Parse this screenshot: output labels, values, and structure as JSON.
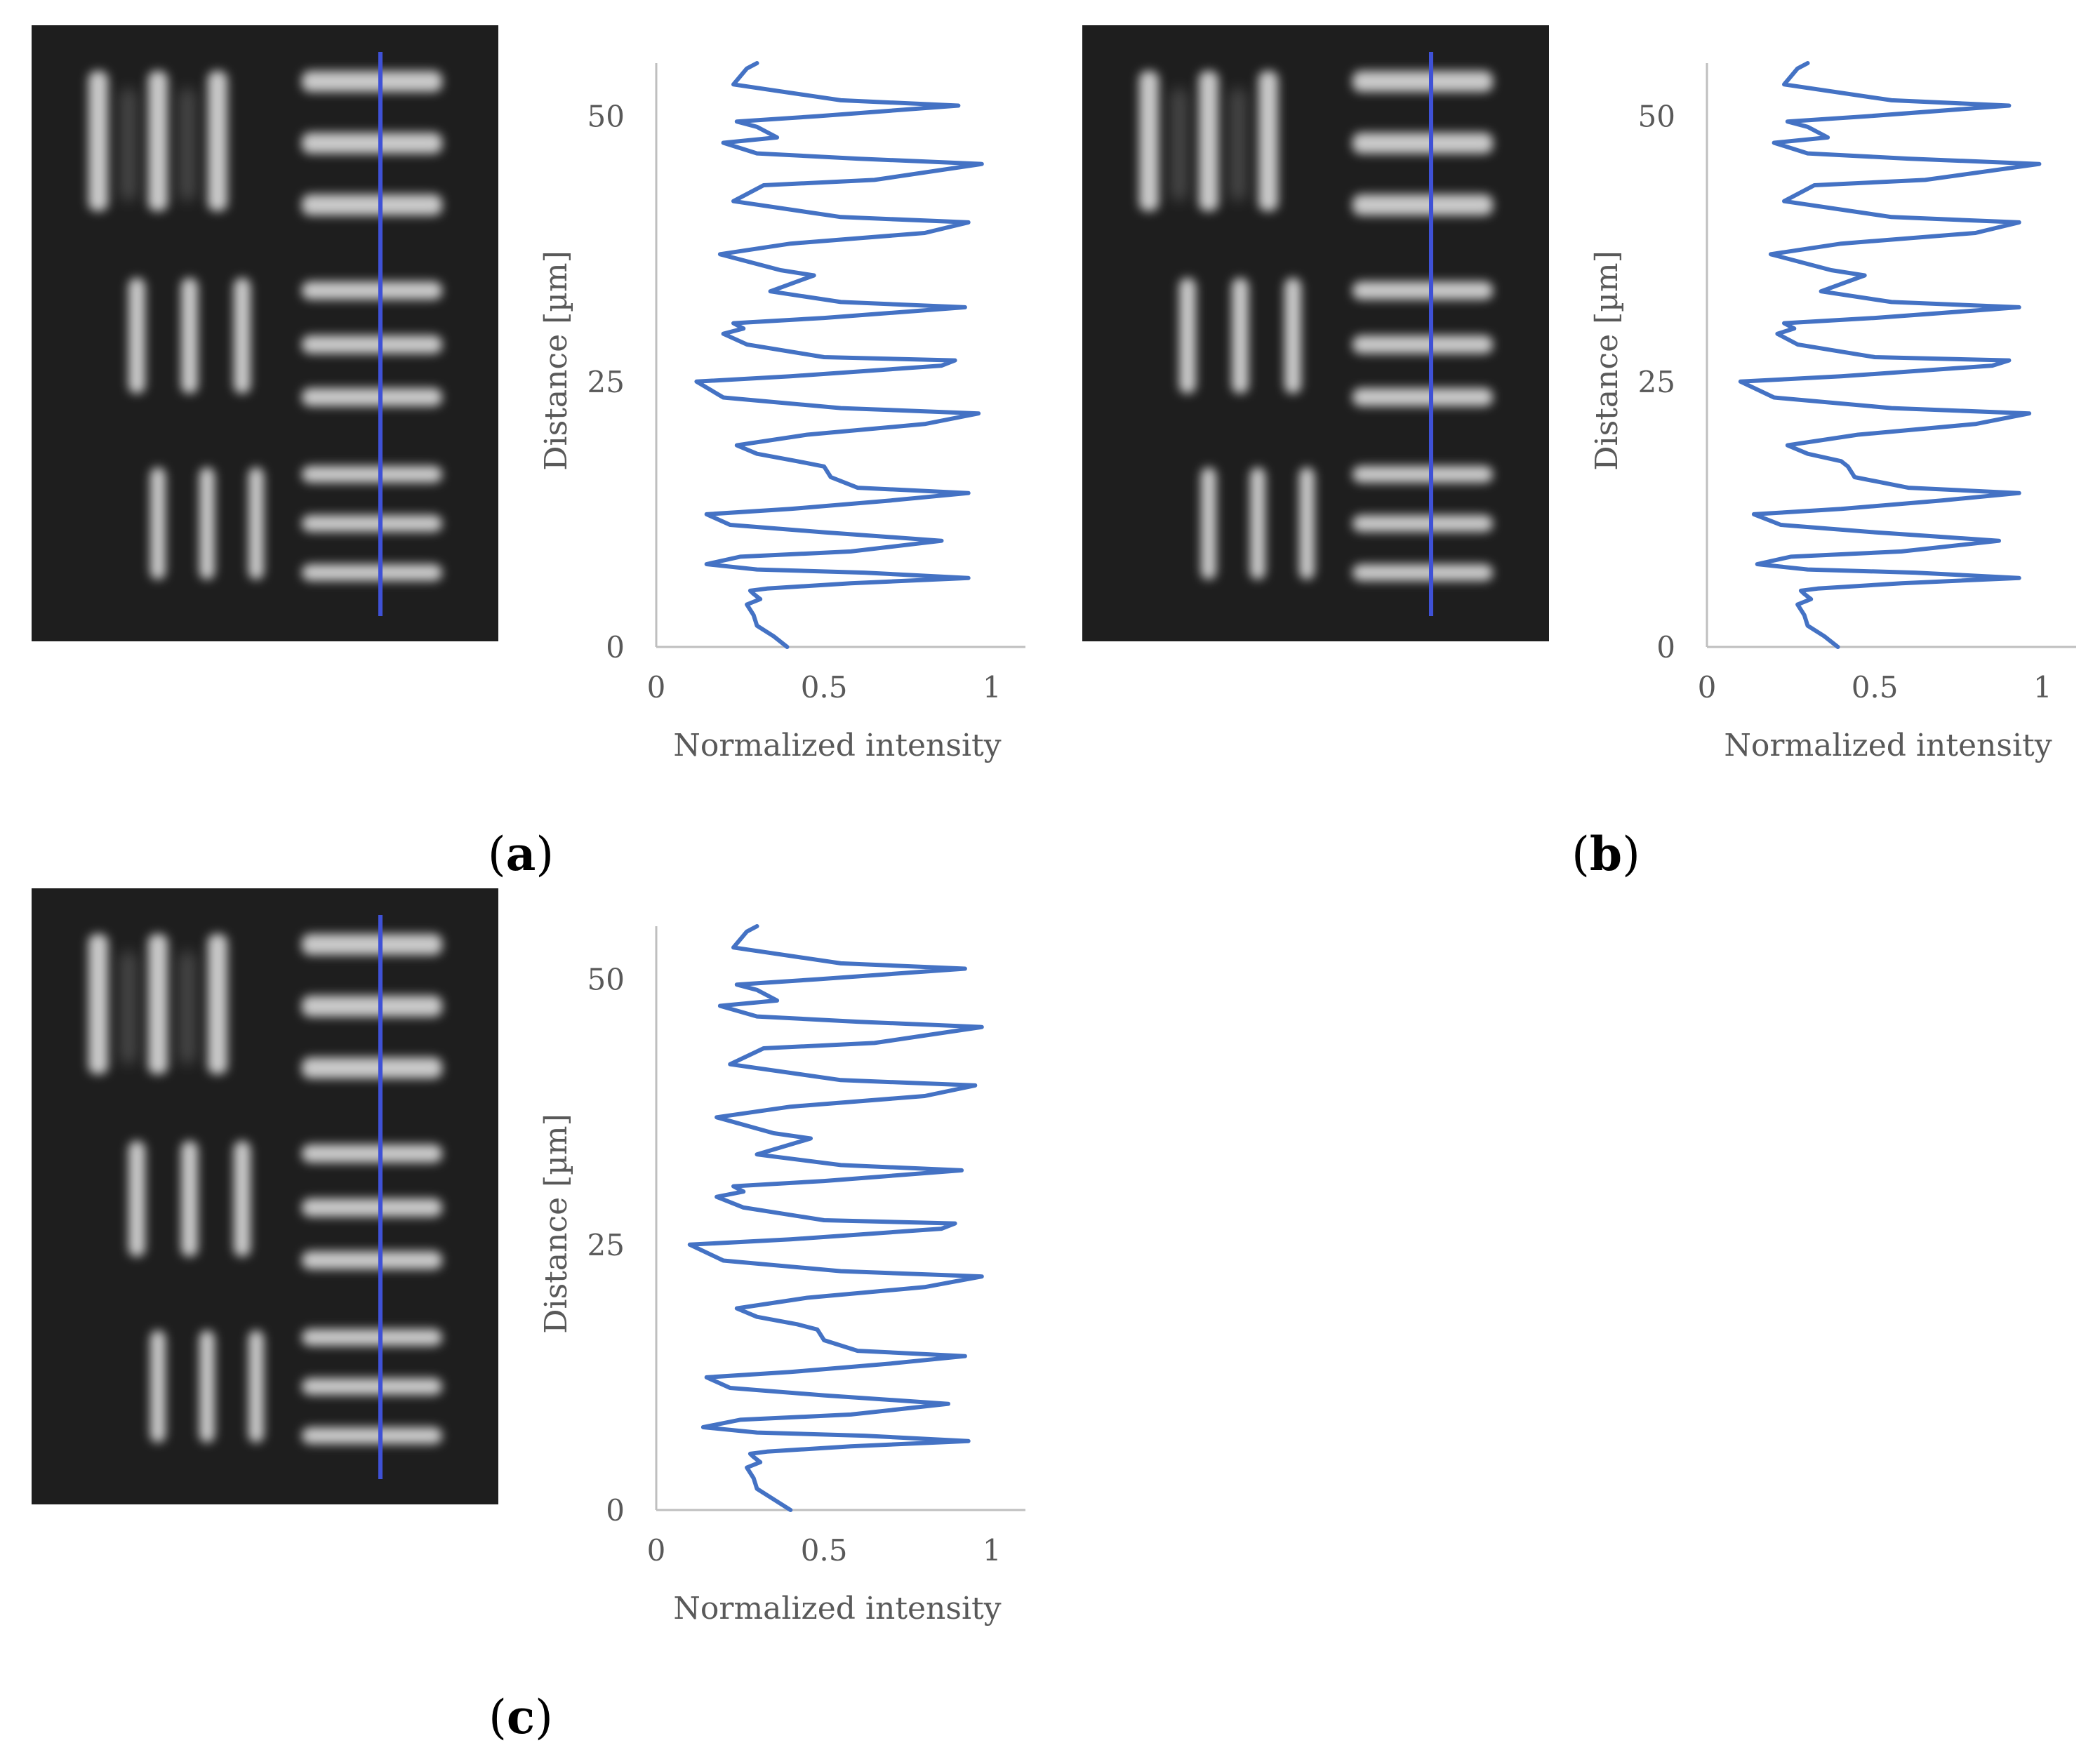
{
  "colors": {
    "profile": "#4472c4",
    "scan_line": "#3f51d6",
    "axis": "#bfbfbf",
    "text": "#595959",
    "image_bg": "#1e1e1e",
    "bar": "#c9c9c9"
  },
  "panels": [
    {
      "label": "a",
      "open": "(",
      "close": ")"
    },
    {
      "label": "b",
      "open": "(",
      "close": ")"
    },
    {
      "label": "c",
      "open": "(",
      "close": ")"
    }
  ],
  "chart_data": [
    {
      "type": "line",
      "panel": "a",
      "title": "",
      "xlabel": "Normalized intensity",
      "ylabel": "Distance [µm]",
      "xlim": [
        0,
        1.1
      ],
      "ylim": [
        0,
        55
      ],
      "xticks": [
        {
          "value": 0,
          "label": "0"
        },
        {
          "value": 0.5,
          "label": "0.5"
        },
        {
          "value": 1,
          "label": "1"
        }
      ],
      "yticks": [
        {
          "value": 0,
          "label": "0"
        },
        {
          "value": 25,
          "label": "25"
        },
        {
          "value": 50,
          "label": "50"
        }
      ],
      "grid": false,
      "series": [
        {
          "x": [
            0.39,
            0.35,
            0.3,
            0.29,
            0.27,
            0.31,
            0.29,
            0.28,
            0.33,
            0.58,
            0.93,
            0.62,
            0.3,
            0.15,
            0.25,
            0.58,
            0.85,
            0.5,
            0.22,
            0.15,
            0.4,
            0.7,
            0.93,
            0.6,
            0.52,
            0.5,
            0.42,
            0.3,
            0.24,
            0.45,
            0.8,
            0.96,
            0.55,
            0.2,
            0.12,
            0.4,
            0.85,
            0.89,
            0.5,
            0.27,
            0.2,
            0.26,
            0.23,
            0.5,
            0.92,
            0.55,
            0.34,
            0.47,
            0.37,
            0.19,
            0.4,
            0.8,
            0.93,
            0.55,
            0.23,
            0.32,
            0.65,
            0.97,
            0.6,
            0.3,
            0.2,
            0.36,
            0.3,
            0.24,
            0.48,
            0.9,
            0.55,
            0.23,
            0.27,
            0.3
          ],
          "y": [
            0,
            1,
            2,
            3,
            4,
            4.5,
            5,
            5.3,
            5.5,
            6,
            6.5,
            7,
            7.3,
            7.8,
            8.5,
            9,
            10,
            10.8,
            11.5,
            12.5,
            13,
            13.8,
            14.5,
            15,
            16,
            17,
            17.5,
            18.2,
            19,
            20,
            21,
            22,
            22.5,
            23.5,
            25,
            25.5,
            26.5,
            27,
            27.3,
            28.5,
            29.5,
            30,
            30.5,
            31,
            32,
            32.5,
            33.5,
            35,
            35.5,
            37,
            38,
            39,
            40,
            40.5,
            42,
            43.5,
            44,
            45.5,
            46,
            46.5,
            47.5,
            48,
            49,
            49.5,
            50,
            51,
            51.5,
            53,
            54.5,
            55
          ]
        }
      ]
    },
    {
      "type": "line",
      "panel": "b",
      "title": "",
      "xlabel": "Normalized intensity",
      "ylabel": "Distance [µm]",
      "xlim": [
        0,
        1.1
      ],
      "ylim": [
        0,
        55
      ],
      "xticks": [
        {
          "value": 0,
          "label": "0"
        },
        {
          "value": 0.5,
          "label": "0.5"
        },
        {
          "value": 1,
          "label": "1"
        }
      ],
      "yticks": [
        {
          "value": 0,
          "label": "0"
        },
        {
          "value": 25,
          "label": "25"
        },
        {
          "value": 50,
          "label": "50"
        }
      ],
      "grid": false,
      "series": [
        {
          "x": [
            0.39,
            0.35,
            0.3,
            0.29,
            0.27,
            0.31,
            0.29,
            0.28,
            0.33,
            0.58,
            0.93,
            0.62,
            0.3,
            0.15,
            0.25,
            0.58,
            0.87,
            0.5,
            0.22,
            0.14,
            0.4,
            0.7,
            0.93,
            0.6,
            0.44,
            0.42,
            0.4,
            0.3,
            0.24,
            0.45,
            0.8,
            0.96,
            0.55,
            0.2,
            0.1,
            0.4,
            0.85,
            0.9,
            0.5,
            0.27,
            0.21,
            0.26,
            0.23,
            0.5,
            0.93,
            0.55,
            0.34,
            0.47,
            0.37,
            0.19,
            0.4,
            0.8,
            0.93,
            0.55,
            0.23,
            0.32,
            0.65,
            0.99,
            0.6,
            0.3,
            0.2,
            0.36,
            0.3,
            0.24,
            0.48,
            0.9,
            0.55,
            0.23,
            0.27,
            0.3
          ],
          "y": [
            0,
            1,
            2,
            3,
            4,
            4.5,
            5,
            5.3,
            5.5,
            6,
            6.5,
            7,
            7.3,
            7.8,
            8.5,
            9,
            10,
            10.8,
            11.5,
            12.5,
            13,
            13.8,
            14.5,
            15,
            16,
            17,
            17.5,
            18.2,
            19,
            20,
            21,
            22,
            22.5,
            23.5,
            25,
            25.5,
            26.5,
            27,
            27.3,
            28.5,
            29.5,
            30,
            30.5,
            31,
            32,
            32.5,
            33.5,
            35,
            35.5,
            37,
            38,
            39,
            40,
            40.5,
            42,
            43.5,
            44,
            45.5,
            46,
            46.5,
            47.5,
            48,
            49,
            49.5,
            50,
            51,
            51.5,
            53,
            54.5,
            55
          ]
        }
      ]
    },
    {
      "type": "line",
      "panel": "c",
      "title": "",
      "xlabel": "Normalized intensity",
      "ylabel": "Distance [µm]",
      "xlim": [
        0,
        1.1
      ],
      "ylim": [
        0,
        55
      ],
      "xticks": [
        {
          "value": 0,
          "label": "0"
        },
        {
          "value": 0.5,
          "label": "0.5"
        },
        {
          "value": 1,
          "label": "1"
        }
      ],
      "yticks": [
        {
          "value": 0,
          "label": "0"
        },
        {
          "value": 25,
          "label": "25"
        },
        {
          "value": 50,
          "label": "50"
        }
      ],
      "grid": false,
      "series": [
        {
          "x": [
            0.4,
            0.35,
            0.3,
            0.29,
            0.27,
            0.31,
            0.29,
            0.28,
            0.33,
            0.58,
            0.93,
            0.62,
            0.3,
            0.14,
            0.25,
            0.58,
            0.87,
            0.5,
            0.22,
            0.15,
            0.4,
            0.7,
            0.92,
            0.6,
            0.5,
            0.48,
            0.42,
            0.3,
            0.24,
            0.45,
            0.8,
            0.97,
            0.55,
            0.2,
            0.1,
            0.4,
            0.85,
            0.89,
            0.5,
            0.26,
            0.18,
            0.26,
            0.23,
            0.5,
            0.91,
            0.55,
            0.3,
            0.46,
            0.35,
            0.18,
            0.4,
            0.8,
            0.95,
            0.55,
            0.22,
            0.32,
            0.65,
            0.97,
            0.6,
            0.3,
            0.19,
            0.36,
            0.3,
            0.24,
            0.48,
            0.92,
            0.55,
            0.23,
            0.27,
            0.3
          ],
          "y": [
            0,
            1,
            2,
            3,
            4,
            4.5,
            5,
            5.3,
            5.5,
            6,
            6.5,
            7,
            7.3,
            7.8,
            8.5,
            9,
            10,
            10.8,
            11.5,
            12.5,
            13,
            13.8,
            14.5,
            15,
            16,
            17,
            17.5,
            18.2,
            19,
            20,
            21,
            22,
            22.5,
            23.5,
            25,
            25.5,
            26.5,
            27,
            27.3,
            28.5,
            29.5,
            30,
            30.5,
            31,
            32,
            32.5,
            33.5,
            35,
            35.5,
            37,
            38,
            39,
            40,
            40.5,
            42,
            43.5,
            44,
            45.5,
            46,
            46.5,
            47.5,
            48,
            49,
            49.5,
            50,
            51,
            51.5,
            53,
            54.5,
            55
          ]
        }
      ]
    }
  ]
}
